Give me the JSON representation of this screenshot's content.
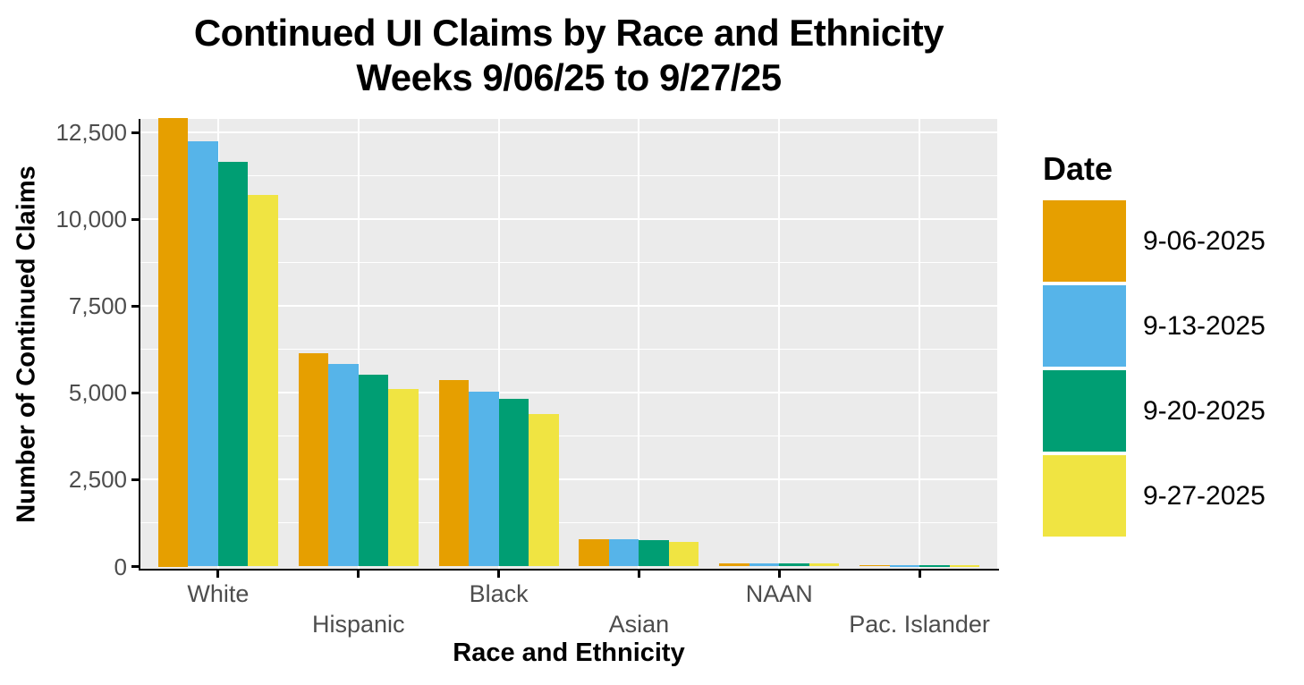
{
  "chart_data": {
    "type": "bar",
    "title": "Continued UI Claims by Race and Ethnicity",
    "subtitle": "Weeks 9/06/25 to 9/27/25",
    "xlabel": "Race and Ethnicity",
    "ylabel": "Number of Continued Claims",
    "categories": [
      "White",
      "Hispanic",
      "Black",
      "Asian",
      "NAAN",
      "Pac. Islander"
    ],
    "series": [
      {
        "name": "9-06-2025",
        "color": "#E69F00",
        "values": [
          12900,
          6150,
          5380,
          780,
          100,
          40
        ]
      },
      {
        "name": "9-13-2025",
        "color": "#56B4E9",
        "values": [
          12230,
          5820,
          5040,
          780,
          95,
          35
        ]
      },
      {
        "name": "9-20-2025",
        "color": "#009E73",
        "values": [
          11660,
          5530,
          4840,
          760,
          85,
          30
        ]
      },
      {
        "name": "9-27-2025",
        "color": "#F0E442",
        "values": [
          10690,
          5120,
          4400,
          700,
          80,
          25
        ]
      }
    ],
    "ylim": [
      0,
      12950
    ],
    "y_major_ticks": [
      0,
      2500,
      5000,
      7500,
      10000,
      12500
    ],
    "y_major_tick_labels": [
      "0",
      "2,500",
      "5,000",
      "7,500",
      "10,000",
      "12,500"
    ],
    "y_minor_ticks": [
      1250,
      3750,
      6250,
      8750,
      11250
    ],
    "grid": "major-and-minor, white on gray panel",
    "legend": {
      "title": "Date",
      "position": "right"
    },
    "colors": {
      "panel_background": "#EBEBEB",
      "gridline": "#FFFFFF",
      "axis_text": "#4D4D4D",
      "axis_line": "#000000",
      "title_text": "#000000"
    }
  }
}
